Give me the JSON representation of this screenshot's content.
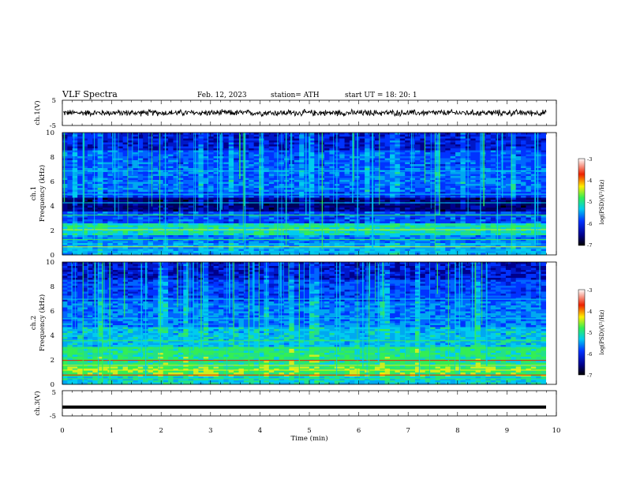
{
  "header": {
    "title": "VLF  Spectra",
    "date": "Feb. 12, 2023",
    "station": "station= ATH",
    "start_ut": "start  UT  =    18: 20: 1"
  },
  "chart_data": [
    {
      "type": "line",
      "panel": "ch1-waveform",
      "ylabel": "ch.1(V)",
      "ylim": [
        -5,
        5
      ],
      "yticks": [
        "5",
        "-5"
      ],
      "xlim": [
        0,
        10
      ],
      "approx_level": 0,
      "approx_noise_amplitude": 1
    },
    {
      "type": "heatmap",
      "panel": "ch1-spectrogram",
      "ylabel": "ch.1\nFrequency  (kHz)",
      "ylim": [
        0,
        10
      ],
      "yticks": [
        "0",
        "2",
        "4",
        "6",
        "8",
        "10"
      ],
      "xlim": [
        0,
        10
      ],
      "colorbar": {
        "label": "log(PSD)(V²/Hz)",
        "range": [
          -7,
          -3
        ],
        "ticks": [
          "-3",
          "-4",
          "-5",
          "-6",
          "-7"
        ]
      }
    },
    {
      "type": "heatmap",
      "panel": "ch2-spectrogram",
      "ylabel": "ch.2\nFrequency  (kHz)",
      "ylim": [
        0,
        10
      ],
      "yticks": [
        "0",
        "2",
        "4",
        "6",
        "8",
        "10"
      ],
      "xlim": [
        0,
        10
      ],
      "colorbar": {
        "label": "log(PSD)(V²/Hz)",
        "range": [
          -7,
          -3
        ],
        "ticks": [
          "-3",
          "-4",
          "-5",
          "-6",
          "-7"
        ]
      }
    },
    {
      "type": "line",
      "panel": "ch3-waveform",
      "ylabel": "ch.3(V)",
      "ylim": [
        -5,
        5
      ],
      "yticks": [
        "5",
        "-5"
      ],
      "xlim": [
        0,
        10
      ],
      "approx_level": -1.5
    }
  ],
  "xaxis": {
    "label": "Time  (min)",
    "ticks": [
      "0",
      "1",
      "2",
      "3",
      "4",
      "5",
      "6",
      "7",
      "8",
      "9",
      "10"
    ]
  },
  "colors": {
    "black": "#000000",
    "navy": "#00008c",
    "blue": "#0033ff",
    "cyan": "#00ccee",
    "green": "#33ee55",
    "yellow": "#ffee00",
    "red": "#ee2200",
    "white": "#ffffff"
  }
}
